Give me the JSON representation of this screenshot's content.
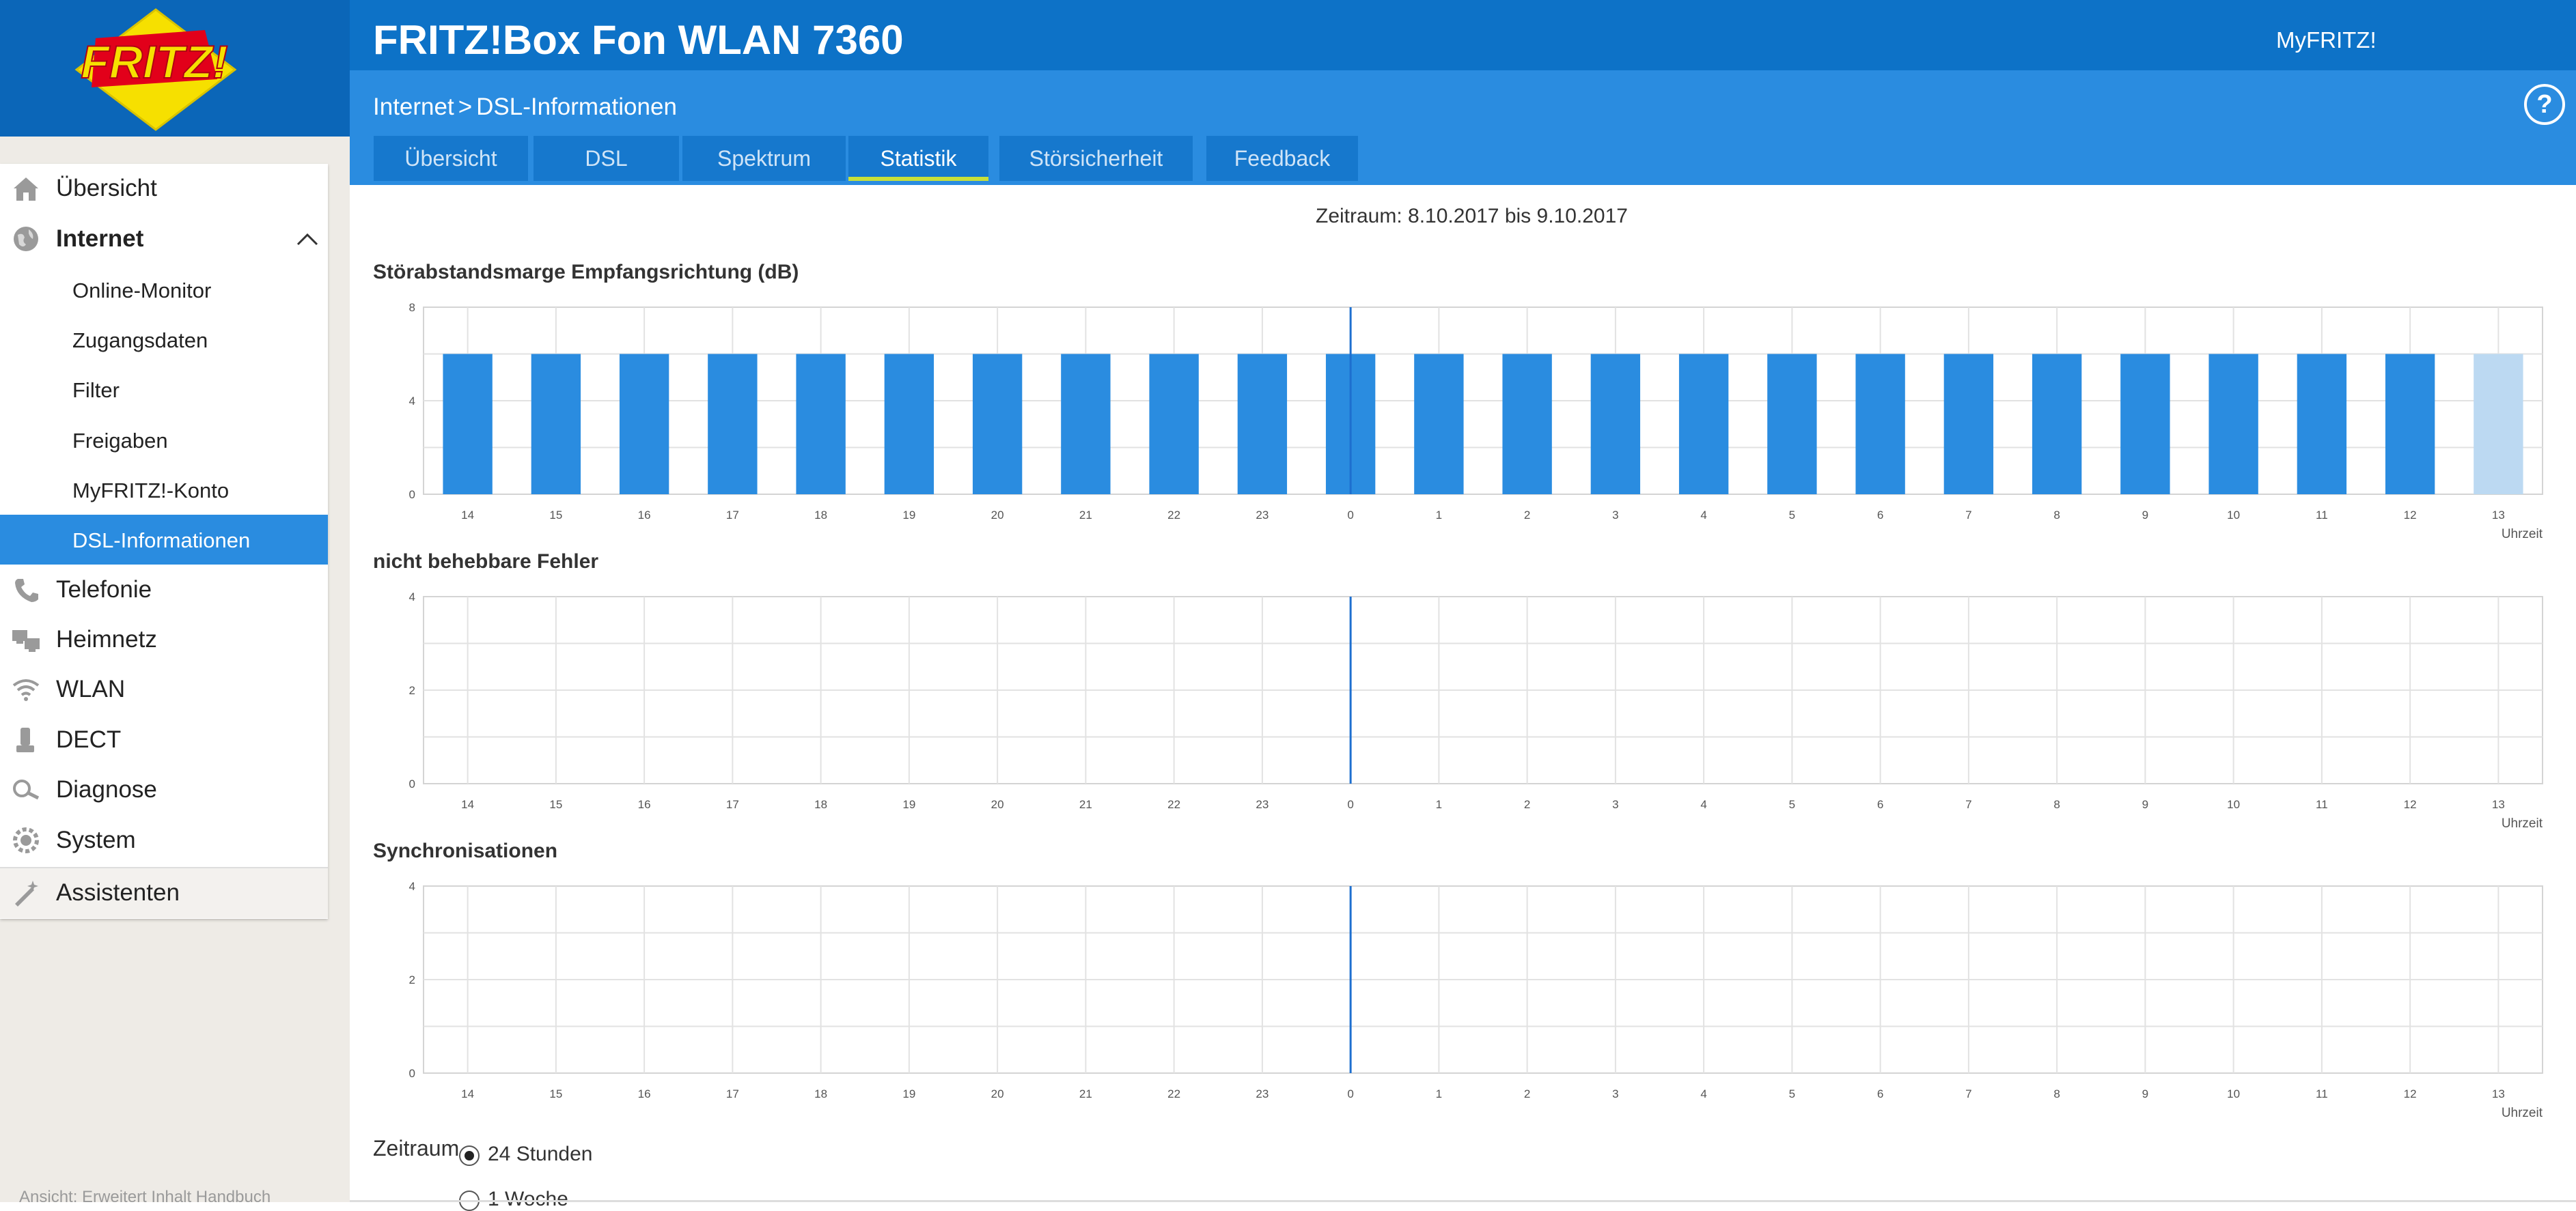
{
  "header": {
    "logo_text": "FRITZ!",
    "product_title": "FRITZ!Box Fon WLAN 7360",
    "myfritz_label": "MyFRITZ!",
    "help_label": "?"
  },
  "breadcrumb": {
    "section": "Internet",
    "separator": ">",
    "page": "DSL-Informationen"
  },
  "tabs": [
    {
      "label": "Übersicht",
      "active": false
    },
    {
      "label": "DSL",
      "active": false
    },
    {
      "label": "Spektrum",
      "active": false
    },
    {
      "label": "Statistik",
      "active": true
    },
    {
      "label": "Störsicherheit",
      "active": false
    },
    {
      "label": "Feedback",
      "active": false
    }
  ],
  "sidebar": {
    "items": [
      {
        "label": "Übersicht",
        "icon": "home-icon"
      },
      {
        "label": "Internet",
        "icon": "globe-icon",
        "expanded": true
      },
      {
        "label": "Online-Monitor"
      },
      {
        "label": "Zugangsdaten"
      },
      {
        "label": "Filter"
      },
      {
        "label": "Freigaben"
      },
      {
        "label": "MyFRITZ!-Konto"
      },
      {
        "label": "DSL-Informationen",
        "active": true
      },
      {
        "label": "Telefonie",
        "icon": "phone-icon"
      },
      {
        "label": "Heimnetz",
        "icon": "network-icon"
      },
      {
        "label": "WLAN",
        "icon": "wifi-icon"
      },
      {
        "label": "DECT",
        "icon": "dect-phone-icon"
      },
      {
        "label": "Diagnose",
        "icon": "diagnose-icon"
      },
      {
        "label": "System",
        "icon": "system-gear-icon"
      },
      {
        "label": "Assistenten",
        "icon": "wizard-icon"
      }
    ],
    "footer": "Ansicht: Erweitert   Inhalt   Handbuch"
  },
  "content": {
    "period_text": "Zeitraum: 8.10.2017 bis 9.10.2017",
    "zeitraum_label": "Zeitraum",
    "options": [
      {
        "label": "24 Stunden",
        "checked": true
      },
      {
        "label": "1 Woche",
        "checked": false
      }
    ]
  },
  "colors": {
    "header_dark": "#0b66b8",
    "header": "#0d72c7",
    "subbar": "#2a8ce0",
    "bar": "#2a8ce0",
    "bar_current": "#bcd9f2",
    "active_tab_underline": "#c7e03a"
  },
  "chart_data": [
    {
      "type": "bar",
      "title": "Störabstandsmarge Empfangsrichtung (dB)",
      "xlabel": "Uhrzeit",
      "categories": [
        "14",
        "15",
        "16",
        "17",
        "18",
        "19",
        "20",
        "21",
        "22",
        "23",
        "0",
        "1",
        "2",
        "3",
        "4",
        "5",
        "6",
        "7",
        "8",
        "9",
        "10",
        "11",
        "12",
        "13"
      ],
      "values": [
        6,
        6,
        6,
        6,
        6,
        6,
        6,
        6,
        6,
        6,
        6,
        6,
        6,
        6,
        6,
        6,
        6,
        6,
        6,
        6,
        6,
        6,
        6,
        6
      ],
      "highlight_last": true,
      "yticks": [
        0,
        4,
        8
      ],
      "ylim": [
        0,
        8
      ],
      "day_marker": "0"
    },
    {
      "type": "bar",
      "title": "nicht behebbare Fehler",
      "xlabel": "Uhrzeit",
      "categories": [
        "14",
        "15",
        "16",
        "17",
        "18",
        "19",
        "20",
        "21",
        "22",
        "23",
        "0",
        "1",
        "2",
        "3",
        "4",
        "5",
        "6",
        "7",
        "8",
        "9",
        "10",
        "11",
        "12",
        "13"
      ],
      "values": [
        0,
        0,
        0,
        0,
        0,
        0,
        0,
        0,
        0,
        0,
        0,
        0,
        0,
        0,
        0,
        0,
        0,
        0,
        0,
        0,
        0,
        0,
        0,
        0
      ],
      "yticks": [
        0,
        2,
        4
      ],
      "ylim": [
        0,
        4
      ],
      "day_marker": "0"
    },
    {
      "type": "bar",
      "title": "Synchronisationen",
      "xlabel": "Uhrzeit",
      "categories": [
        "14",
        "15",
        "16",
        "17",
        "18",
        "19",
        "20",
        "21",
        "22",
        "23",
        "0",
        "1",
        "2",
        "3",
        "4",
        "5",
        "6",
        "7",
        "8",
        "9",
        "10",
        "11",
        "12",
        "13"
      ],
      "values": [
        0,
        0,
        0,
        0,
        0,
        0,
        0,
        0,
        0,
        0,
        0,
        0,
        0,
        0,
        0,
        0,
        0,
        0,
        0,
        0,
        0,
        0,
        0,
        0
      ],
      "yticks": [
        0,
        2,
        4
      ],
      "ylim": [
        0,
        4
      ],
      "day_marker": "0"
    }
  ]
}
